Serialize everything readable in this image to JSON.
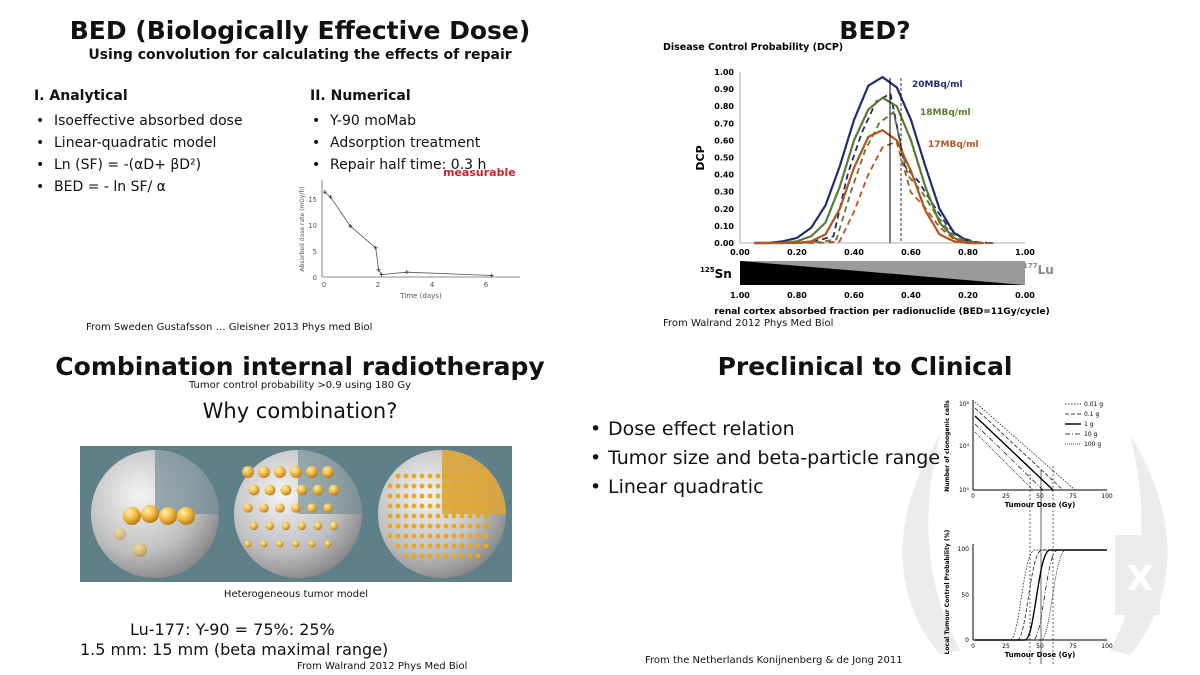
{
  "q1": {
    "title": "BED (Biologically Effective Dose)",
    "subtitle": "Using convolution for calculating the effects of repair",
    "analytical_heading": "I. Analytical",
    "analytical_items": [
      "Isoeffective absorbed dose",
      "Linear-quadratic model",
      "Ln (SF) = -(αD+ βD²)",
      "BED = - ln SF/ α"
    ],
    "numerical_heading": "II. Numerical",
    "numerical_items": [
      "Y-90 moMab",
      "Adsorption treatment",
      "Repair half time: 0.3 h"
    ],
    "measurable_note": "measurable",
    "source": "From Sweden Gustafsson … Gleisner 2013 Phys med Biol",
    "plot": {
      "ylabel": "Absorbed dose rate (mGy/h)",
      "xlabel": "Time (days)",
      "x_ticks": [
        "0",
        "2",
        "4",
        "6"
      ],
      "y_ticks": [
        "0",
        "5",
        "10",
        "15"
      ]
    }
  },
  "q2": {
    "title": "BED?",
    "source": "From Walrand 2012 Phys Med Biol",
    "sn_label": "Sn",
    "sn_mass": "125",
    "lu_label": "Lu",
    "lu_mass": "177",
    "bottom_ticks": [
      "1.00",
      "0.80",
      "0.60",
      "0.40",
      "0.20",
      "0.00"
    ]
  },
  "q3": {
    "title": "Combination internal radiotherapy",
    "subtitle": "Tumor control probability >0.9 using 180 Gy",
    "question": "Why combination?",
    "caption": "Heterogeneous tumor model",
    "ratio_line": "Lu-177: Y-90 = 75%: 25%",
    "range_line": "1.5 mm: 15 mm (beta maximal range)",
    "source": "From Walrand 2012 Phys Med Biol"
  },
  "q4": {
    "title": "Preclinical to Clinical",
    "items": [
      "Dose effect relation",
      "Tumor size and beta-particle range",
      "Linear quadratic"
    ],
    "source": "From the Netherlands Konijnenberg & de Jong 2011",
    "top_plot": {
      "ylabel": "Number of clonogenic cells",
      "xlabel": "Tumour Dose (Gy)",
      "legend": [
        "0.01 g",
        "0.1 g",
        "1 g",
        "10 g",
        "100 g"
      ],
      "x_ticks": [
        "0",
        "25",
        "50",
        "75",
        "100"
      ],
      "y_ticks": [
        "10⁸",
        "10⁴",
        "10⁰"
      ]
    },
    "bottom_plot": {
      "ylabel": "Local Tumour Control Probability (%)",
      "xlabel": "Tumour Dose (Gy)",
      "x_ticks": [
        "0",
        "25",
        "50",
        "75",
        "100"
      ],
      "y_ticks": [
        "0",
        "50",
        "100"
      ]
    }
  },
  "chart_data": [
    {
      "type": "line",
      "title": "Disease Control Probability (DCP)",
      "xlabel": "renal cortex absorbed fraction per radionuclide (BED=11Gy/cycle)",
      "ylabel": "DCP",
      "xlim": [
        0,
        1
      ],
      "ylim": [
        0,
        1
      ],
      "x_ticks": [
        "0.00",
        "0.20",
        "0.40",
        "0.60",
        "0.80",
        "1.00"
      ],
      "y_ticks": [
        "0.00",
        "0.10",
        "0.20",
        "0.30",
        "0.40",
        "0.50",
        "0.60",
        "0.70",
        "0.80",
        "0.90",
        "1.00"
      ],
      "grid": false,
      "annotations": [
        "20MBq/ml",
        "18MBq/ml",
        "17MBq/ml"
      ],
      "x": [
        0.05,
        0.1,
        0.15,
        0.2,
        0.25,
        0.3,
        0.35,
        0.4,
        0.45,
        0.5,
        0.55,
        0.6,
        0.65,
        0.7,
        0.75,
        0.8,
        0.85
      ],
      "series": [
        {
          "color": "#1f2d6b",
          "values": [
            0.0,
            0.0,
            0.01,
            0.03,
            0.09,
            0.22,
            0.45,
            0.72,
            0.92,
            0.97,
            0.91,
            0.72,
            0.45,
            0.2,
            0.06,
            0.01,
            0.0
          ]
        },
        {
          "color": "#5c7a34",
          "values": [
            0.0,
            0.0,
            0.0,
            0.01,
            0.04,
            0.12,
            0.33,
            0.6,
            0.78,
            0.85,
            0.8,
            0.6,
            0.33,
            0.12,
            0.03,
            0.0,
            0.0
          ]
        },
        {
          "color": "#b2561f",
          "values": [
            0.0,
            0.0,
            0.0,
            0.0,
            0.01,
            0.05,
            0.2,
            0.44,
            0.62,
            0.66,
            0.6,
            0.42,
            0.19,
            0.05,
            0.01,
            0.0,
            0.0
          ]
        }
      ]
    },
    {
      "type": "scatter",
      "xlabel": "Time (days)",
      "ylabel": "Absorbed dose rate (mGy/h)",
      "xlim": [
        0,
        7
      ],
      "ylim": [
        0,
        20
      ],
      "x": [
        0.1,
        0.3,
        1.0,
        1.9,
        2.0,
        2.1,
        3.0,
        6.0
      ],
      "values": [
        17.5,
        16.5,
        10.5,
        6.0,
        1.5,
        0.5,
        1.0,
        0.3
      ]
    }
  ]
}
